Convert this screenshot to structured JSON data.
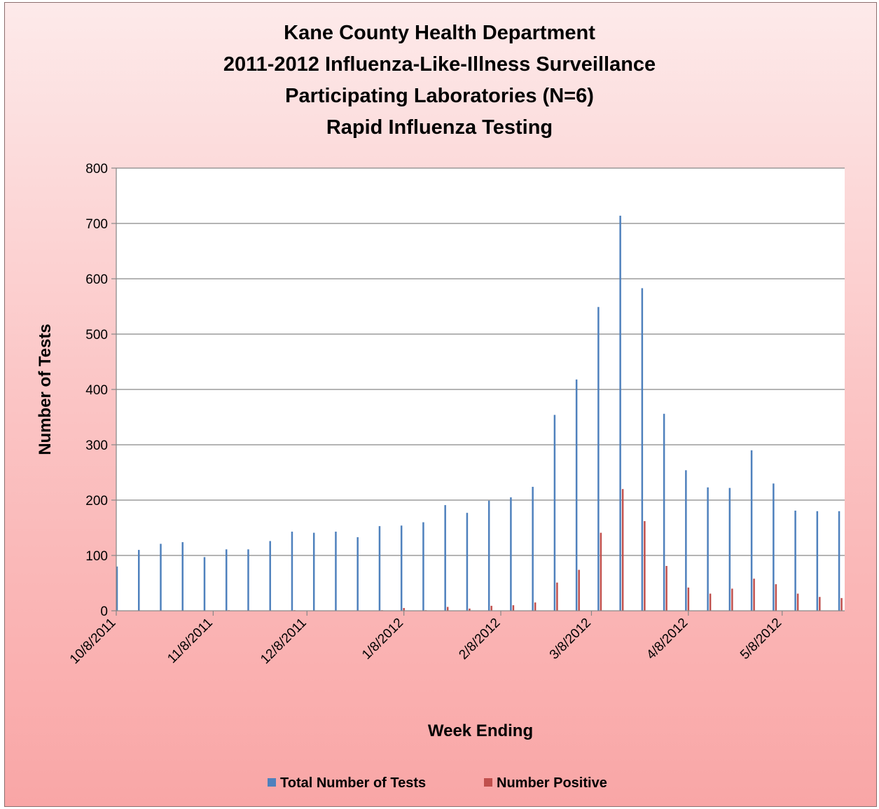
{
  "chart_data": {
    "type": "bar",
    "title": [
      "Kane County Health Department",
      "2011-2012 Influenza-Like-Illness Surveillance",
      "Participating Laboratories (N=6)",
      "Rapid Influenza Testing"
    ],
    "xlabel": "Week Ending",
    "ylabel": "Number of Tests",
    "ylim": [
      0,
      800
    ],
    "yticks": [
      0,
      100,
      200,
      300,
      400,
      500,
      600,
      700,
      800
    ],
    "x_range": [
      "2011-10-08",
      "2012-05-28"
    ],
    "xtick_labels": [
      {
        "date": "2011-10-08",
        "label": "10/8/2011"
      },
      {
        "date": "2011-11-08",
        "label": "11/8/2011"
      },
      {
        "date": "2011-12-08",
        "label": "12/8/2011"
      },
      {
        "date": "2012-01-08",
        "label": "1/8/2012"
      },
      {
        "date": "2012-02-08",
        "label": "2/8/2012"
      },
      {
        "date": "2012-03-08",
        "label": "3/8/2012"
      },
      {
        "date": "2012-04-08",
        "label": "4/8/2012"
      },
      {
        "date": "2012-05-08",
        "label": "5/8/2012"
      }
    ],
    "grid": "horizontal",
    "legend_position": "bottom",
    "categories": [
      "2011-10-08",
      "2011-10-15",
      "2011-10-22",
      "2011-10-29",
      "2011-11-05",
      "2011-11-12",
      "2011-11-19",
      "2011-11-26",
      "2011-12-03",
      "2011-12-10",
      "2011-12-17",
      "2011-12-24",
      "2011-12-31",
      "2012-01-07",
      "2012-01-14",
      "2012-01-21",
      "2012-01-28",
      "2012-02-04",
      "2012-02-11",
      "2012-02-18",
      "2012-02-25",
      "2012-03-03",
      "2012-03-10",
      "2012-03-17",
      "2012-03-24",
      "2012-03-31",
      "2012-04-07",
      "2012-04-14",
      "2012-04-21",
      "2012-04-28",
      "2012-05-05",
      "2012-05-12",
      "2012-05-19",
      "2012-05-26"
    ],
    "series": [
      {
        "name": "Total Number of Tests",
        "color": "#4f81bd",
        "values": [
          80,
          110,
          121,
          124,
          97,
          111,
          111,
          126,
          143,
          141,
          143,
          133,
          153,
          154,
          160,
          191,
          177,
          199,
          205,
          224,
          354,
          418,
          549,
          714,
          583,
          356,
          254,
          223,
          222,
          290,
          230,
          181,
          180,
          180
        ]
      },
      {
        "name": "Number Positive",
        "color": "#c0504d",
        "values": [
          0,
          0,
          0,
          0,
          0,
          1,
          0,
          0,
          1,
          0,
          0,
          0,
          1,
          5,
          1,
          7,
          4,
          9,
          10,
          15,
          51,
          74,
          141,
          220,
          162,
          81,
          42,
          31,
          40,
          58,
          48,
          31,
          25,
          23
        ]
      }
    ]
  }
}
